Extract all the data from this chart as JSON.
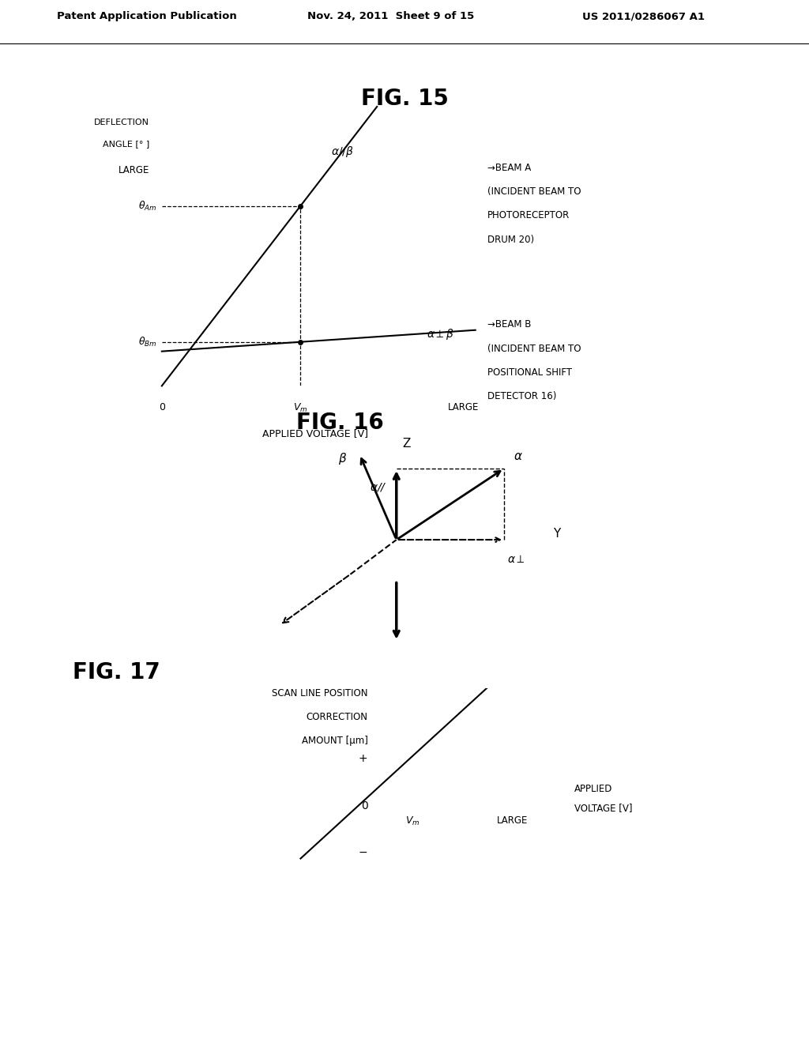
{
  "bg_color": "#ffffff",
  "header_text": "Patent Application Publication",
  "header_date": "Nov. 24, 2011  Sheet 9 of 15",
  "header_patent": "US 2011/0286067 A1",
  "fig15_title": "FIG. 15",
  "fig16_title": "FIG. 16",
  "fig17_title": "FIG. 17",
  "fig15_ylabel_line1": "DEFLECTION",
  "fig15_ylabel_line2": "ANGLE [° ]",
  "fig15_ylabel_line3": "LARGE",
  "fig15_xlabel": "APPLIED VOLTAGE [V]",
  "fig15_beam_a_line1": "→BEAM A",
  "fig15_beam_a_line2": "(INCIDENT BEAM TO",
  "fig15_beam_a_line3": "PHOTORECEPTOR",
  "fig15_beam_a_line4": "DRUM 20)",
  "fig15_beam_b_line1": "→BEAM B",
  "fig15_beam_b_line2": "(INCIDENT BEAM TO",
  "fig15_beam_b_line3": "POSITIONAL SHIFT",
  "fig15_beam_b_line4": "DETECTOR 16)",
  "fig16_z": "Z",
  "fig16_y": "Y",
  "fig17_ylabel_line1": "SCAN LINE POSITION",
  "fig17_ylabel_line2": "CORRECTION",
  "fig17_ylabel_line3": "AMOUNT [μm]"
}
